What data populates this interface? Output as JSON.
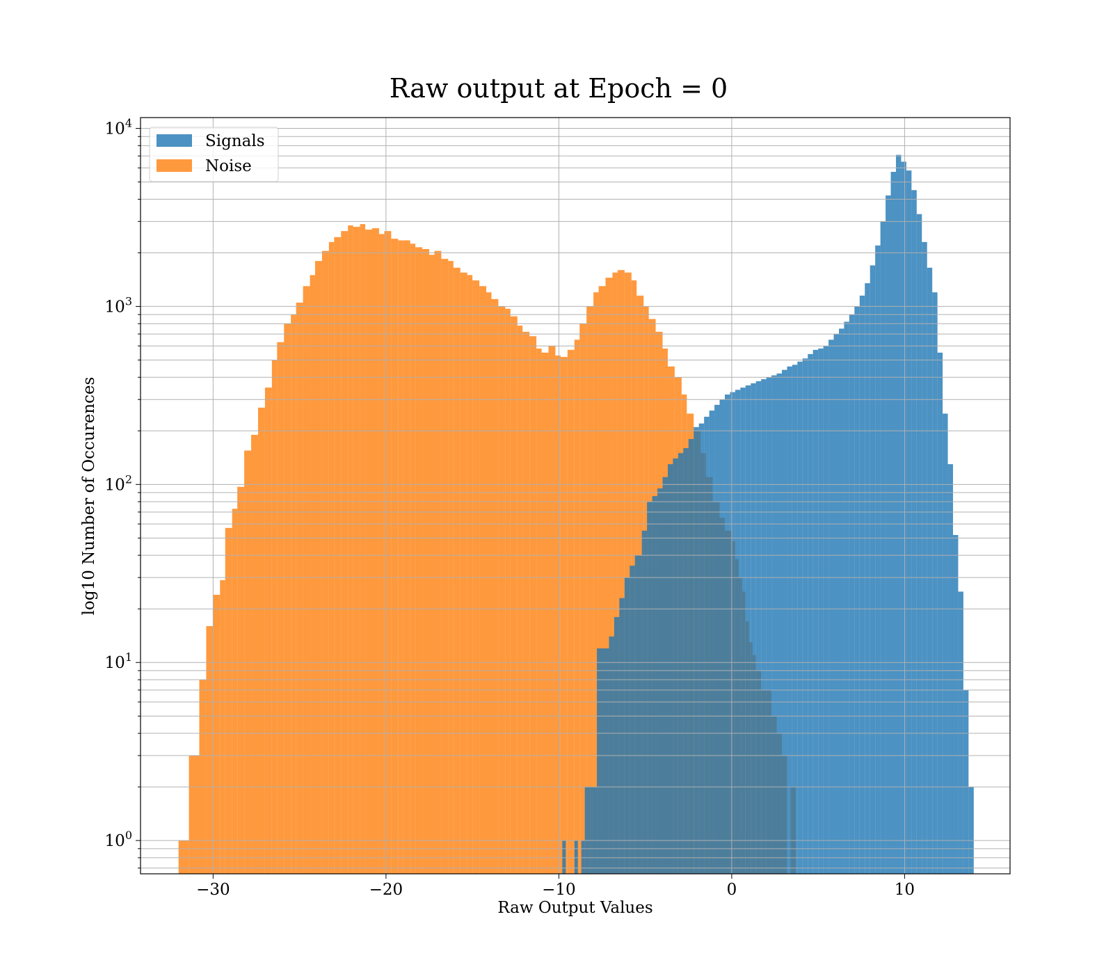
{
  "chart_data": {
    "type": "bar",
    "title": "Raw output at Epoch = 0",
    "xlabel": "Raw Output Values",
    "ylabel": "log10 Number of Occurences",
    "xlim": [
      -34.2,
      16.1
    ],
    "ylim": [
      0.65,
      11500
    ],
    "yscale": "log",
    "grid": true,
    "legend_position": "upper-left",
    "xticks": [
      {
        "value": -30,
        "label": "−30"
      },
      {
        "value": -20,
        "label": "−20"
      },
      {
        "value": -10,
        "label": "−10"
      },
      {
        "value": 0,
        "label": "0"
      },
      {
        "value": 10,
        "label": "10"
      }
    ],
    "yticks": [
      {
        "value": 1,
        "base": "10",
        "exp": "0"
      },
      {
        "value": 10,
        "base": "10",
        "exp": "1"
      },
      {
        "value": 100,
        "base": "10",
        "exp": "2"
      },
      {
        "value": 1000,
        "base": "10",
        "exp": "3"
      },
      {
        "value": 10000,
        "base": "10",
        "exp": "4"
      }
    ],
    "series": [
      {
        "name": "Noise",
        "color": "#ff7f0e",
        "opacity": 0.8,
        "bins": [
          [
            -32.0,
            -31.4,
            1
          ],
          [
            -31.4,
            -30.8,
            3
          ],
          [
            -30.8,
            -30.4,
            8
          ],
          [
            -30.4,
            -30.0,
            16
          ],
          [
            -30.0,
            -29.6,
            24
          ],
          [
            -29.6,
            -29.3,
            29
          ],
          [
            -29.3,
            -28.9,
            57
          ],
          [
            -28.9,
            -28.6,
            73
          ],
          [
            -28.6,
            -28.2,
            97
          ],
          [
            -28.2,
            -27.8,
            155
          ],
          [
            -27.8,
            -27.4,
            190
          ],
          [
            -27.4,
            -27.0,
            270
          ],
          [
            -27.0,
            -26.6,
            350
          ],
          [
            -26.6,
            -26.3,
            500
          ],
          [
            -26.3,
            -25.9,
            630
          ],
          [
            -25.9,
            -25.5,
            800
          ],
          [
            -25.5,
            -25.2,
            900
          ],
          [
            -25.2,
            -24.8,
            1050
          ],
          [
            -24.8,
            -24.4,
            1300
          ],
          [
            -24.4,
            -24.1,
            1500
          ],
          [
            -24.1,
            -23.7,
            1800
          ],
          [
            -23.7,
            -23.3,
            2050
          ],
          [
            -23.3,
            -23.0,
            2300
          ],
          [
            -23.0,
            -22.6,
            2450
          ],
          [
            -22.6,
            -22.2,
            2650
          ],
          [
            -22.2,
            -21.9,
            2850
          ],
          [
            -21.9,
            -21.5,
            2800
          ],
          [
            -21.5,
            -21.2,
            2900
          ],
          [
            -21.2,
            -20.8,
            2700
          ],
          [
            -20.8,
            -20.4,
            2750
          ],
          [
            -20.4,
            -20.1,
            2550
          ],
          [
            -20.1,
            -19.7,
            2650
          ],
          [
            -19.7,
            -19.3,
            2400
          ],
          [
            -19.3,
            -19.0,
            2350
          ],
          [
            -19.0,
            -18.6,
            2350
          ],
          [
            -18.6,
            -18.3,
            2250
          ],
          [
            -18.3,
            -17.9,
            2150
          ],
          [
            -17.9,
            -17.5,
            2100
          ],
          [
            -17.5,
            -17.2,
            1950
          ],
          [
            -17.2,
            -16.8,
            2050
          ],
          [
            -16.8,
            -16.4,
            1850
          ],
          [
            -16.4,
            -16.1,
            1800
          ],
          [
            -16.1,
            -15.7,
            1650
          ],
          [
            -15.7,
            -15.3,
            1550
          ],
          [
            -15.3,
            -15.0,
            1500
          ],
          [
            -15.0,
            -14.6,
            1400
          ],
          [
            -14.6,
            -14.2,
            1300
          ],
          [
            -14.2,
            -13.9,
            1200
          ],
          [
            -13.9,
            -13.5,
            1100
          ],
          [
            -13.5,
            -13.1,
            1000
          ],
          [
            -13.1,
            -12.8,
            970
          ],
          [
            -12.8,
            -12.4,
            880
          ],
          [
            -12.4,
            -12.1,
            780
          ],
          [
            -12.1,
            -11.7,
            720
          ],
          [
            -11.7,
            -11.3,
            680
          ],
          [
            -11.3,
            -11.0,
            580
          ],
          [
            -11.0,
            -10.6,
            550
          ],
          [
            -10.6,
            -10.2,
            600
          ],
          [
            -10.2,
            -9.9,
            530
          ],
          [
            -9.9,
            -9.5,
            520
          ],
          [
            -9.5,
            -9.1,
            570
          ],
          [
            -9.1,
            -8.8,
            650
          ],
          [
            -8.8,
            -8.4,
            800
          ],
          [
            -8.4,
            -8.0,
            1000
          ],
          [
            -8.0,
            -7.7,
            1200
          ],
          [
            -7.7,
            -7.3,
            1300
          ],
          [
            -7.3,
            -6.9,
            1450
          ],
          [
            -6.9,
            -6.6,
            1550
          ],
          [
            -6.6,
            -6.2,
            1600
          ],
          [
            -6.2,
            -5.8,
            1550
          ],
          [
            -5.8,
            -5.5,
            1400
          ],
          [
            -5.5,
            -5.1,
            1150
          ],
          [
            -5.1,
            -4.8,
            1000
          ],
          [
            -4.8,
            -4.4,
            850
          ],
          [
            -4.4,
            -4.0,
            720
          ],
          [
            -4.0,
            -3.7,
            580
          ],
          [
            -3.7,
            -3.3,
            460
          ],
          [
            -3.3,
            -2.9,
            400
          ],
          [
            -2.9,
            -2.6,
            320
          ],
          [
            -2.6,
            -2.2,
            250
          ],
          [
            -2.2,
            -1.8,
            200
          ],
          [
            -1.8,
            -1.5,
            150
          ],
          [
            -1.5,
            -1.1,
            110
          ],
          [
            -1.1,
            -0.7,
            80
          ],
          [
            -0.7,
            -0.4,
            65
          ],
          [
            -0.4,
            0.0,
            55
          ],
          [
            0.0,
            0.2,
            48
          ],
          [
            0.2,
            0.4,
            38
          ],
          [
            0.4,
            0.6,
            30
          ],
          [
            0.6,
            0.8,
            25
          ],
          [
            0.8,
            1.0,
            17
          ],
          [
            1.0,
            1.2,
            13
          ],
          [
            1.2,
            1.4,
            11
          ],
          [
            1.4,
            1.7,
            9
          ],
          [
            1.7,
            2.0,
            7
          ],
          [
            2.0,
            2.3,
            7
          ],
          [
            2.3,
            2.6,
            5
          ],
          [
            2.6,
            2.9,
            4
          ],
          [
            2.9,
            3.2,
            3
          ],
          [
            3.4,
            3.7,
            2
          ]
        ]
      },
      {
        "name": "Signals",
        "color": "#1f77b4",
        "opacity": 0.8,
        "bins": [
          [
            -9.8,
            -9.6,
            1
          ],
          [
            -9.1,
            -8.9,
            1
          ],
          [
            -8.7,
            -8.5,
            1
          ],
          [
            -8.5,
            -8.2,
            2
          ],
          [
            -8.2,
            -7.8,
            2
          ],
          [
            -7.8,
            -7.5,
            12
          ],
          [
            -7.5,
            -7.1,
            12
          ],
          [
            -7.1,
            -6.8,
            14
          ],
          [
            -6.8,
            -6.5,
            18
          ],
          [
            -6.5,
            -6.2,
            23
          ],
          [
            -6.2,
            -5.9,
            30
          ],
          [
            -5.9,
            -5.6,
            35
          ],
          [
            -5.6,
            -5.2,
            40
          ],
          [
            -5.2,
            -4.9,
            55
          ],
          [
            -4.9,
            -4.6,
            80
          ],
          [
            -4.6,
            -4.3,
            86
          ],
          [
            -4.3,
            -4.0,
            95
          ],
          [
            -4.0,
            -3.7,
            110
          ],
          [
            -3.7,
            -3.4,
            130
          ],
          [
            -3.4,
            -3.1,
            140
          ],
          [
            -3.1,
            -2.8,
            150
          ],
          [
            -2.8,
            -2.5,
            160
          ],
          [
            -2.5,
            -2.2,
            180
          ],
          [
            -2.2,
            -1.9,
            210
          ],
          [
            -1.9,
            -1.6,
            220
          ],
          [
            -1.6,
            -1.3,
            240
          ],
          [
            -1.3,
            -1.0,
            260
          ],
          [
            -1.0,
            -0.7,
            280
          ],
          [
            -0.7,
            -0.4,
            300
          ],
          [
            -0.4,
            -0.1,
            320
          ],
          [
            -0.1,
            0.2,
            330
          ],
          [
            0.2,
            0.5,
            340
          ],
          [
            0.5,
            0.8,
            350
          ],
          [
            0.8,
            1.1,
            360
          ],
          [
            1.1,
            1.4,
            370
          ],
          [
            1.4,
            1.7,
            380
          ],
          [
            1.7,
            2.0,
            390
          ],
          [
            2.0,
            2.3,
            400
          ],
          [
            2.3,
            2.6,
            410
          ],
          [
            2.6,
            2.9,
            420
          ],
          [
            2.9,
            3.2,
            440
          ],
          [
            3.2,
            3.5,
            460
          ],
          [
            3.5,
            3.8,
            470
          ],
          [
            3.8,
            4.1,
            490
          ],
          [
            4.1,
            4.4,
            510
          ],
          [
            4.4,
            4.7,
            540
          ],
          [
            4.7,
            5.0,
            570
          ],
          [
            5.0,
            5.3,
            580
          ],
          [
            5.3,
            5.6,
            600
          ],
          [
            5.6,
            5.9,
            650
          ],
          [
            5.9,
            6.2,
            700
          ],
          [
            6.2,
            6.5,
            750
          ],
          [
            6.5,
            6.8,
            820
          ],
          [
            6.8,
            7.1,
            900
          ],
          [
            7.1,
            7.4,
            1000
          ],
          [
            7.4,
            7.7,
            1150
          ],
          [
            7.7,
            8.0,
            1350
          ],
          [
            8.0,
            8.3,
            1700
          ],
          [
            8.3,
            8.6,
            2200
          ],
          [
            8.6,
            8.9,
            3000
          ],
          [
            8.9,
            9.2,
            4200
          ],
          [
            9.2,
            9.5,
            5700
          ],
          [
            9.5,
            9.8,
            7100
          ],
          [
            9.8,
            10.1,
            6500
          ],
          [
            10.1,
            10.4,
            5800
          ],
          [
            10.4,
            10.7,
            4500
          ],
          [
            10.7,
            11.0,
            3300
          ],
          [
            11.0,
            11.3,
            2300
          ],
          [
            11.3,
            11.6,
            1650
          ],
          [
            11.6,
            11.9,
            1200
          ],
          [
            11.9,
            12.2,
            550
          ],
          [
            12.2,
            12.5,
            250
          ],
          [
            12.5,
            12.8,
            130
          ],
          [
            12.8,
            13.1,
            52
          ],
          [
            13.1,
            13.4,
            25
          ],
          [
            13.4,
            13.7,
            7
          ],
          [
            13.7,
            14.0,
            2
          ]
        ]
      }
    ],
    "legend": [
      {
        "label": "Signals",
        "color": "#1f77b4"
      },
      {
        "label": "Noise",
        "color": "#ff7f0e"
      }
    ]
  }
}
